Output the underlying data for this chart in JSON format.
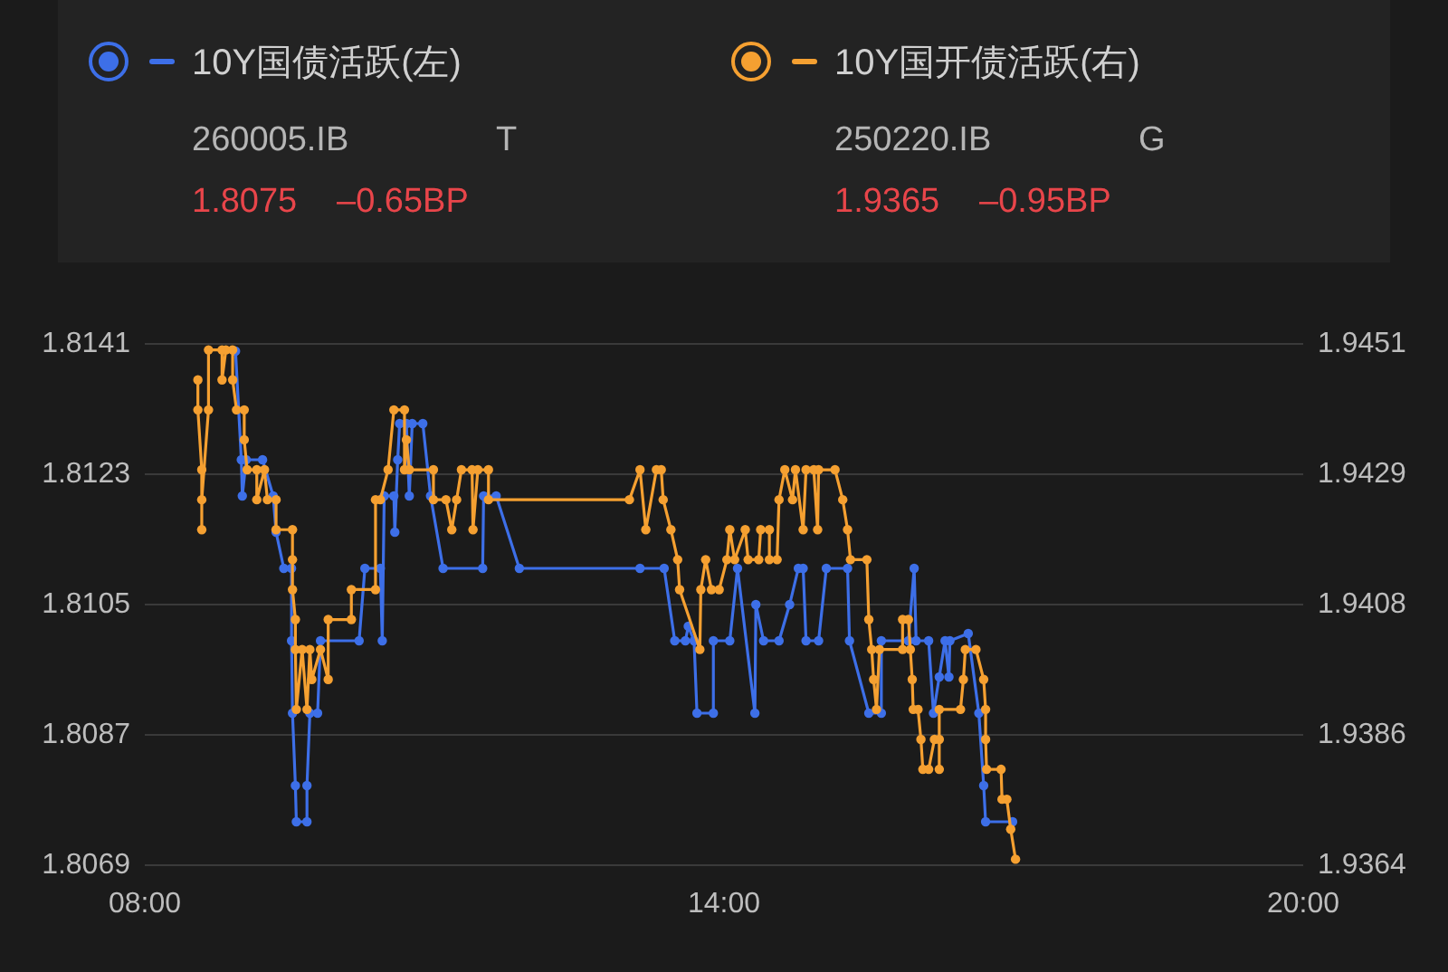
{
  "chart_data": {
    "type": "line",
    "legend": "top",
    "grid": "y",
    "marker": "circle",
    "line_style": "solid",
    "xlim": [
      8,
      20
    ],
    "xticks": [
      {
        "value": 8,
        "label": "08:00"
      },
      {
        "value": 14,
        "label": "14:00"
      },
      {
        "value": 20,
        "label": "20:00"
      }
    ],
    "ylim": [
      1.8069,
      1.8141
    ],
    "yticks": [
      1.8069,
      1.8087,
      1.8105,
      1.8123,
      1.8141
    ],
    "y2lim": [
      1.9364,
      1.9451
    ],
    "y2ticks": [
      1.9364,
      {
        "value": 1.938575,
        "label": "1.9386"
      },
      {
        "value": 1.94075,
        "label": "1.9408"
      },
      {
        "value": 1.942925,
        "label": "1.9429"
      },
      1.9451
    ],
    "annotations": [
      "260005.IB",
      "T",
      "1.8075",
      "–0.65BP",
      "250220.IB",
      "G",
      "1.9365",
      "–0.95BP"
    ],
    "series": [
      {
        "name": "10Y国债活跃(左)",
        "color": "#3d6fe8",
        "axis": "y",
        "x": [
          8.94,
          9.0,
          9.01,
          9.05,
          9.22,
          9.33,
          9.36,
          9.44,
          9.52,
          9.52,
          9.53,
          9.56,
          9.57,
          9.68,
          9.68,
          9.71,
          9.79,
          9.82,
          10.22,
          10.28,
          10.44,
          10.46,
          10.48,
          10.58,
          10.59,
          10.62,
          10.64,
          10.71,
          10.74,
          10.77,
          10.88,
          10.96,
          11.09,
          11.5,
          11.51,
          11.64,
          11.88,
          13.13,
          13.38,
          13.49,
          13.6,
          13.63,
          13.69,
          13.72,
          13.89,
          13.89,
          14.06,
          14.14,
          14.32,
          14.33,
          14.41,
          14.57,
          14.68,
          14.77,
          14.82,
          14.85,
          14.98,
          15.06,
          15.28,
          15.3,
          15.5,
          15.63,
          15.63,
          15.91,
          15.97,
          15.99,
          16.12,
          16.17,
          16.23,
          16.29,
          16.33,
          16.34,
          16.53,
          16.64,
          16.69,
          16.71,
          16.99
        ],
        "values": [
          1.814,
          1.8125,
          1.812,
          1.8125,
          1.8125,
          1.812,
          1.8115,
          1.811,
          1.811,
          1.81,
          1.809,
          1.808,
          1.8075,
          1.8075,
          1.808,
          1.809,
          1.809,
          1.81,
          1.81,
          1.811,
          1.811,
          1.81,
          1.812,
          1.812,
          1.8115,
          1.8125,
          1.813,
          1.813,
          1.812,
          1.813,
          1.813,
          1.812,
          1.811,
          1.811,
          1.812,
          1.812,
          1.811,
          1.811,
          1.811,
          1.81,
          1.81,
          1.8102,
          1.81,
          1.809,
          1.809,
          1.81,
          1.81,
          1.811,
          1.809,
          1.8105,
          1.81,
          1.81,
          1.8105,
          1.811,
          1.811,
          1.81,
          1.81,
          1.811,
          1.811,
          1.81,
          1.809,
          1.809,
          1.81,
          1.81,
          1.811,
          1.81,
          1.81,
          1.809,
          1.8095,
          1.81,
          1.8095,
          1.81,
          1.8101,
          1.809,
          1.808,
          1.8075,
          1.8075
        ]
      },
      {
        "name": "10Y国开债活跃(右)",
        "color": "#f5a031",
        "axis": "y2",
        "x": [
          8.55,
          8.55,
          8.59,
          8.59,
          8.59,
          8.66,
          8.66,
          8.8,
          8.8,
          8.84,
          8.91,
          8.91,
          8.95,
          9.03,
          9.03,
          9.06,
          9.16,
          9.16,
          9.24,
          9.27,
          9.36,
          9.36,
          9.53,
          9.53,
          9.53,
          9.56,
          9.56,
          9.57,
          9.63,
          9.68,
          9.71,
          9.73,
          9.82,
          9.9,
          9.9,
          10.14,
          10.14,
          10.39,
          10.39,
          10.44,
          10.52,
          10.58,
          10.69,
          10.69,
          10.71,
          10.74,
          10.99,
          10.99,
          11.12,
          11.18,
          11.23,
          11.28,
          11.39,
          11.4,
          11.45,
          11.56,
          11.56,
          13.02,
          13.13,
          13.19,
          13.3,
          13.35,
          13.37,
          13.45,
          13.52,
          13.54,
          13.75,
          13.76,
          13.81,
          13.87,
          13.95,
          14.03,
          14.06,
          14.11,
          14.22,
          14.25,
          14.36,
          14.38,
          14.47,
          14.47,
          14.55,
          14.57,
          14.63,
          14.71,
          14.74,
          14.82,
          14.85,
          14.93,
          14.97,
          14.98,
          15.15,
          15.23,
          15.28,
          15.31,
          15.48,
          15.5,
          15.53,
          15.55,
          15.58,
          15.61,
          15.85,
          15.85,
          15.91,
          15.93,
          15.95,
          15.96,
          16.01,
          16.04,
          16.06,
          16.12,
          16.18,
          16.23,
          16.23,
          16.23,
          16.45,
          16.48,
          16.5,
          16.61,
          16.69,
          16.71,
          16.71,
          16.72,
          16.87,
          16.88,
          16.93,
          16.97,
          17.02
        ],
        "values": [
          1.9445,
          1.944,
          1.943,
          1.942,
          1.9425,
          1.944,
          1.945,
          1.945,
          1.9445,
          1.945,
          1.945,
          1.9445,
          1.944,
          1.944,
          1.9435,
          1.943,
          1.943,
          1.9425,
          1.943,
          1.9425,
          1.9425,
          1.942,
          1.942,
          1.9415,
          1.941,
          1.9405,
          1.94,
          1.939,
          1.94,
          1.939,
          1.94,
          1.9395,
          1.94,
          1.9395,
          1.9405,
          1.9405,
          1.941,
          1.941,
          1.9425,
          1.9425,
          1.943,
          1.944,
          1.944,
          1.943,
          1.9435,
          1.943,
          1.943,
          1.9425,
          1.9425,
          1.942,
          1.9425,
          1.943,
          1.943,
          1.942,
          1.943,
          1.943,
          1.9425,
          1.9425,
          1.943,
          1.942,
          1.943,
          1.943,
          1.9425,
          1.942,
          1.9415,
          1.941,
          1.94,
          1.941,
          1.9415,
          1.941,
          1.941,
          1.9415,
          1.942,
          1.9415,
          1.942,
          1.9415,
          1.9415,
          1.942,
          1.942,
          1.9415,
          1.9415,
          1.9425,
          1.943,
          1.9425,
          1.943,
          1.942,
          1.943,
          1.943,
          1.942,
          1.943,
          1.943,
          1.9425,
          1.942,
          1.9415,
          1.9415,
          1.9405,
          1.94,
          1.9395,
          1.939,
          1.94,
          1.94,
          1.9405,
          1.9405,
          1.94,
          1.9395,
          1.939,
          1.939,
          1.9385,
          1.938,
          1.938,
          1.9385,
          1.9385,
          1.938,
          1.939,
          1.939,
          1.9395,
          1.94,
          1.94,
          1.9395,
          1.939,
          1.9385,
          1.938,
          1.938,
          1.9375,
          1.9375,
          1.937,
          1.9365
        ]
      }
    ]
  }
}
